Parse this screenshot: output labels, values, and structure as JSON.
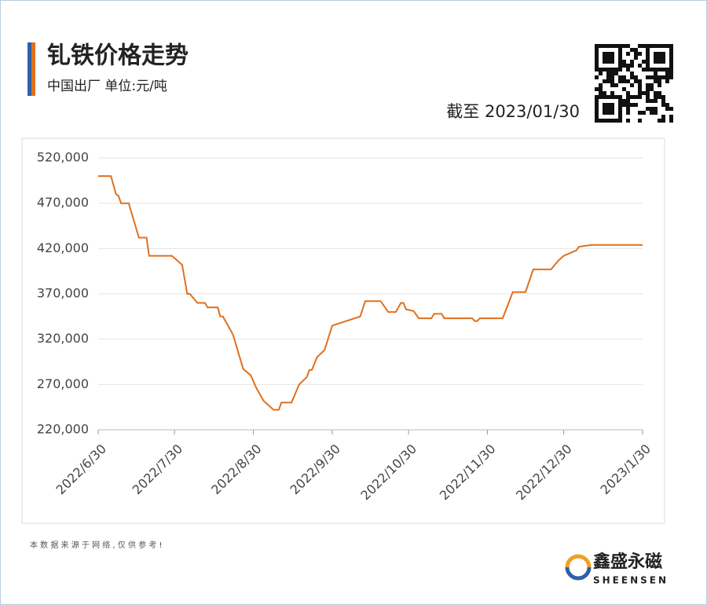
{
  "chart_data": {
    "type": "line",
    "title": "钆铁价格走势",
    "subtitle": "中国出厂 单位:元/吨",
    "date_note": "截至 2023/01/30",
    "source_note": "本 数 据 来 源 于 网 络 , 仅 供 参 考 !",
    "brand": "鑫盛永磁",
    "brand_en": "SHEENSEN",
    "x": [
      "2022/6/30",
      "2022/7/5",
      "2022/7/7",
      "2022/7/8",
      "2022/7/9",
      "2022/7/12",
      "2022/7/16",
      "2022/7/19",
      "2022/7/20",
      "2022/7/29",
      "2022/8/2",
      "2022/8/4",
      "2022/8/5",
      "2022/8/8",
      "2022/8/11",
      "2022/8/12",
      "2022/8/16",
      "2022/8/17",
      "2022/8/18",
      "2022/8/20",
      "2022/8/22",
      "2022/8/26",
      "2022/8/29",
      "2022/8/31",
      "2022/9/3",
      "2022/9/7",
      "2022/9/9",
      "2022/9/10",
      "2022/9/14",
      "2022/9/17",
      "2022/9/20",
      "2022/9/21",
      "2022/9/22",
      "2022/9/24",
      "2022/9/27",
      "2022/9/30",
      "2022/10/11",
      "2022/10/13",
      "2022/10/19",
      "2022/10/22",
      "2022/10/25",
      "2022/10/27",
      "2022/10/28",
      "2022/10/29",
      "2022/11/1",
      "2022/11/3",
      "2022/11/8",
      "2022/11/9",
      "2022/11/12",
      "2022/11/13",
      "2022/11/24",
      "2022/11/25",
      "2022/11/26",
      "2022/11/27",
      "2022/12/6",
      "2022/12/10",
      "2022/12/15",
      "2022/12/18",
      "2022/12/25",
      "2022/12/28",
      "2022/12/30",
      "2023/1/4",
      "2023/1/5",
      "2023/1/10",
      "2023/1/30"
    ],
    "series": [
      {
        "name": "钆铁",
        "color": "#e0701e",
        "values": [
          500000,
          500000,
          480000,
          478000,
          470000,
          470000,
          432000,
          432000,
          412000,
          412000,
          402000,
          370000,
          370000,
          360000,
          360000,
          355000,
          355000,
          345000,
          345000,
          335000,
          325000,
          287000,
          280000,
          267000,
          252000,
          242000,
          242000,
          250000,
          250000,
          270000,
          278000,
          286000,
          286000,
          300000,
          308000,
          335000,
          345000,
          362000,
          362000,
          350000,
          350000,
          360000,
          360000,
          353000,
          351000,
          343000,
          343000,
          348000,
          348000,
          343000,
          343000,
          340000,
          340000,
          343000,
          343000,
          372000,
          372000,
          397000,
          397000,
          407000,
          412000,
          418000,
          422000,
          424000,
          424000
        ]
      }
    ],
    "xlim": [
      "2022/6/30",
      "2023/1/30"
    ],
    "xticks": [
      "2022/6/30",
      "2022/7/30",
      "2022/8/30",
      "2022/9/30",
      "2022/10/30",
      "2022/11/30",
      "2022/12/30",
      "2023/1/30"
    ],
    "ylim": [
      220000,
      520000
    ],
    "yticks": [
      {
        "value": 220000,
        "label": "220,000"
      },
      {
        "value": 270000,
        "label": "270,000"
      },
      {
        "value": 320000,
        "label": "320,000"
      },
      {
        "value": 370000,
        "label": "370,000"
      },
      {
        "value": 420000,
        "label": "420,000"
      },
      {
        "value": 470000,
        "label": "470,000"
      },
      {
        "value": 520000,
        "label": "520,000"
      }
    ],
    "grid": true
  }
}
